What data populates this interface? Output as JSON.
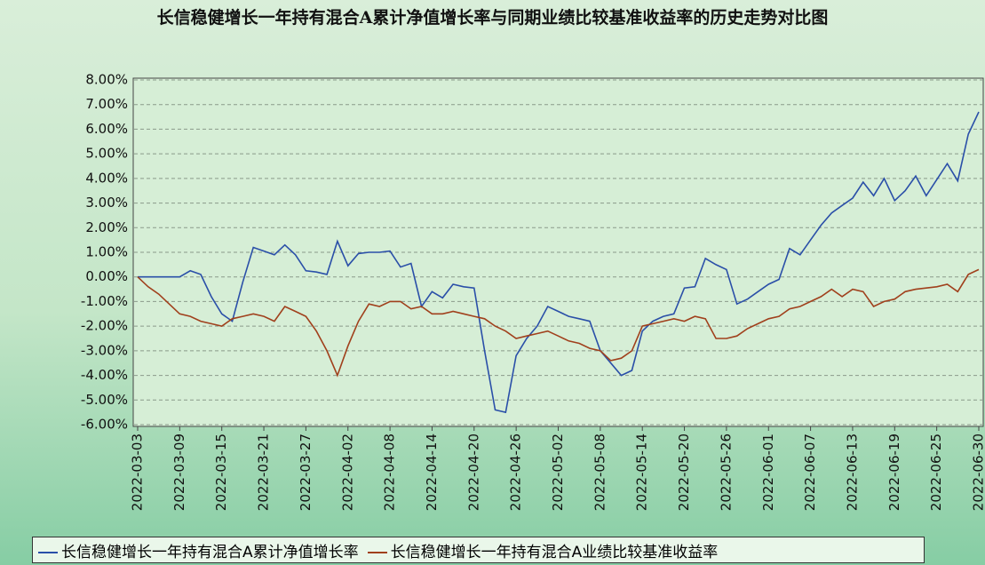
{
  "chart_data": {
    "type": "line",
    "title": "长信稳健增长一年持有混合A累计净值增长率与同期业绩比较基准收益率的历史走势对比图",
    "categories": [
      "2022-03-03",
      null,
      null,
      null,
      "2022-03-09",
      null,
      null,
      null,
      "2022-03-15",
      null,
      null,
      null,
      "2022-03-21",
      null,
      null,
      null,
      "2022-03-27",
      null,
      null,
      null,
      "2022-04-02",
      null,
      null,
      null,
      "2022-04-08",
      null,
      null,
      null,
      "2022-04-14",
      null,
      null,
      null,
      "2022-04-20",
      null,
      null,
      null,
      "2022-04-26",
      null,
      null,
      null,
      "2022-05-02",
      null,
      null,
      null,
      "2022-05-08",
      null,
      null,
      null,
      "2022-05-14",
      null,
      null,
      null,
      "2022-05-20",
      null,
      null,
      null,
      "2022-05-26",
      null,
      null,
      null,
      "2022-06-01",
      null,
      null,
      null,
      "2022-06-07",
      null,
      null,
      null,
      "2022-06-13",
      null,
      null,
      null,
      "2022-06-19",
      null,
      null,
      null,
      "2022-06-25",
      null,
      null,
      null,
      "2022-06-30"
    ],
    "series": [
      {
        "name": "长信稳健增长一年持有混合A累计净值增长率",
        "color": "#2a4fa8",
        "values": [
          0,
          0,
          0,
          0,
          0,
          0.25,
          0.1,
          -0.8,
          -1.5,
          -1.8,
          -0.2,
          1.2,
          1.05,
          0.9,
          1.3,
          0.9,
          0.25,
          0.2,
          0.1,
          1.45,
          0.45,
          0.95,
          1.0,
          1.0,
          1.05,
          0.4,
          0.55,
          -1.2,
          -0.6,
          -0.85,
          -0.3,
          -0.4,
          -0.45,
          -3.0,
          -5.4,
          -5.5,
          -3.2,
          -2.5,
          -2.0,
          -1.2,
          -1.4,
          -1.6,
          -1.7,
          -1.8,
          -3.0,
          -3.5,
          -4.0,
          -3.8,
          -2.2,
          -1.8,
          -1.6,
          -1.5,
          -0.45,
          -0.4,
          0.75,
          0.5,
          0.3,
          -1.1,
          -0.9,
          -0.6,
          -0.3,
          -0.1,
          1.15,
          0.9,
          1.5,
          2.1,
          2.6,
          2.9,
          3.2,
          3.85,
          3.3,
          4.0,
          3.1,
          3.5,
          4.1,
          3.3,
          3.95,
          4.6,
          3.9,
          5.8,
          6.7
        ]
      },
      {
        "name": "长信稳健增长一年持有混合A业绩比较基准收益率",
        "color": "#a0401c",
        "values": [
          0,
          -0.4,
          -0.7,
          -1.1,
          -1.5,
          -1.6,
          -1.8,
          -1.9,
          -2.0,
          -1.7,
          -1.6,
          -1.5,
          -1.6,
          -1.8,
          -1.2,
          -1.4,
          -1.6,
          -2.2,
          -3.0,
          -4.0,
          -2.8,
          -1.8,
          -1.1,
          -1.2,
          -1.0,
          -1.0,
          -1.3,
          -1.2,
          -1.5,
          -1.5,
          -1.4,
          -1.5,
          -1.6,
          -1.7,
          -2.0,
          -2.2,
          -2.5,
          -2.4,
          -2.3,
          -2.2,
          -2.4,
          -2.6,
          -2.7,
          -2.9,
          -3.0,
          -3.4,
          -3.3,
          -3.0,
          -2.0,
          -1.9,
          -1.8,
          -1.7,
          -1.8,
          -1.6,
          -1.7,
          -2.5,
          -2.5,
          -2.4,
          -2.1,
          -1.9,
          -1.7,
          -1.6,
          -1.3,
          -1.2,
          -1.0,
          -0.8,
          -0.5,
          -0.8,
          -0.5,
          -0.6,
          -1.2,
          -1.0,
          -0.9,
          -0.6,
          -0.5,
          -0.45,
          -0.4,
          -0.3,
          -0.6,
          0.1,
          0.3
        ]
      }
    ],
    "ylim": [
      -6,
      8
    ],
    "yticks": [
      {
        "value": -6,
        "label": "-6.00%"
      },
      {
        "value": -5,
        "label": "-5.00%"
      },
      {
        "value": -4,
        "label": "-4.00%"
      },
      {
        "value": -3,
        "label": "-3.00%"
      },
      {
        "value": -2,
        "label": "-2.00%"
      },
      {
        "value": -1,
        "label": "-1.00%"
      },
      {
        "value": 0,
        "label": "0.00%"
      },
      {
        "value": 1,
        "label": "1.00%"
      },
      {
        "value": 2,
        "label": "2.00%"
      },
      {
        "value": 3,
        "label": "3.00%"
      },
      {
        "value": 4,
        "label": "4.00%"
      },
      {
        "value": 5,
        "label": "5.00%"
      },
      {
        "value": 6,
        "label": "6.00%"
      },
      {
        "value": 7,
        "label": "7.00%"
      },
      {
        "value": 8,
        "label": "8.00%"
      }
    ],
    "grid": true
  }
}
